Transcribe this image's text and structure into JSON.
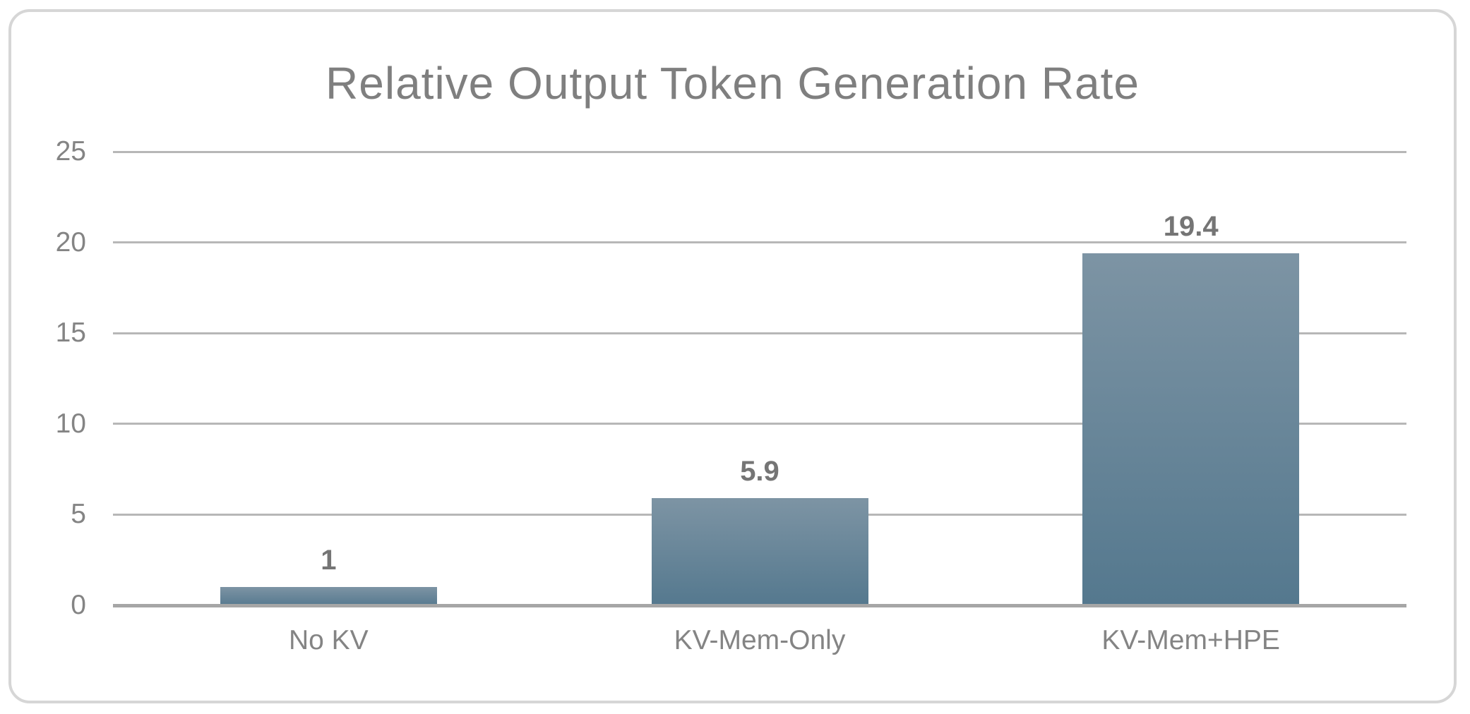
{
  "chart_data": {
    "type": "bar",
    "title": "Relative Output Token Generation Rate",
    "categories": [
      "No KV",
      "KV-Mem-Only",
      "KV-Mem+HPE"
    ],
    "values": [
      1,
      5.9,
      19.4
    ],
    "value_labels": [
      "1",
      "5.9",
      "19.4"
    ],
    "yticks": [
      0,
      5,
      10,
      15,
      20,
      25
    ],
    "ylim": [
      0,
      25
    ],
    "xlabel": "",
    "ylabel": "",
    "grid": "horizontal",
    "legend": "none",
    "colors": {
      "background": "#ffffff",
      "card_border": "#d6d6d6",
      "title_text": "#7f7f7f",
      "tick_text": "#848484",
      "value_label_text": "#757575",
      "gridline": "#b7b7b7",
      "axis_line": "#a6a6a6",
      "bar_gradient_top": "#7d94a4",
      "bar_gradient_bottom": "#54788e"
    }
  }
}
